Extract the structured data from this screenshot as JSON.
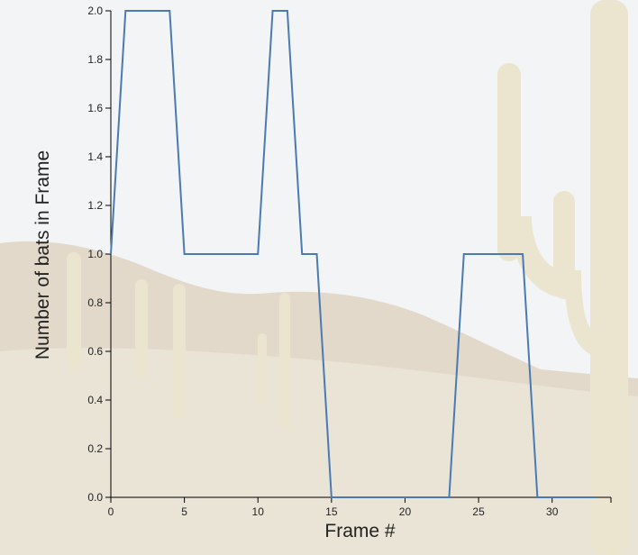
{
  "background": {
    "sky_color": "#eef0f2",
    "hill_color": "#d8cdb8",
    "desert_color": "#e3dbc8",
    "cactus_color": "#e4dcbf"
  },
  "chart_data": {
    "type": "line",
    "xlabel": "Frame #",
    "ylabel": "Number of bats in Frame",
    "xlim": [
      0,
      34
    ],
    "ylim": [
      0,
      2
    ],
    "x_ticks": [
      0,
      5,
      10,
      15,
      20,
      25,
      30
    ],
    "y_ticks": [
      "0.0",
      "0.2",
      "0.4",
      "0.6",
      "0.8",
      "1.0",
      "1.2",
      "1.4",
      "1.6",
      "1.8",
      "2.0"
    ],
    "grid": false,
    "series": [
      {
        "color": "#4a7ab3",
        "x": [
          0,
          1,
          2,
          3,
          4,
          5,
          6,
          7,
          8,
          9,
          10,
          11,
          12,
          13,
          14,
          15,
          16,
          17,
          18,
          19,
          20,
          21,
          22,
          23,
          24,
          25,
          26,
          27,
          28,
          29,
          30,
          31,
          32,
          33
        ],
        "y": [
          1,
          2,
          2,
          2,
          2,
          1,
          1,
          1,
          1,
          1,
          1,
          2,
          2,
          1,
          1,
          0,
          0,
          0,
          0,
          0,
          0,
          0,
          0,
          0,
          1,
          1,
          1,
          1,
          1,
          0,
          0,
          0,
          0,
          0
        ]
      }
    ]
  }
}
